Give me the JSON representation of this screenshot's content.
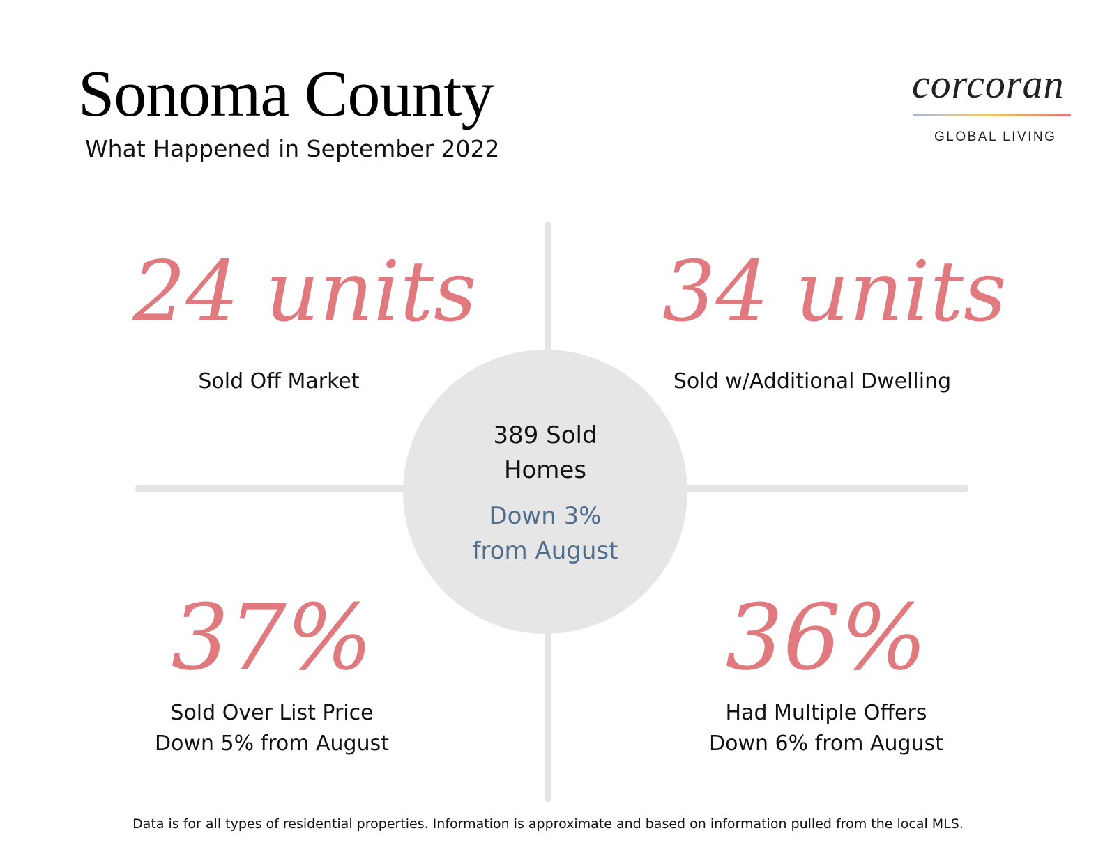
{
  "header": {
    "title": "Sonoma County",
    "subtitle": "What Happened in September 2022"
  },
  "logo": {
    "wordmark": "corcoran",
    "tagline": "GLOBAL LIVING"
  },
  "center": {
    "line1": "389 Sold",
    "line2": "Homes",
    "change_line1": "Down 3%",
    "change_line2": "from August"
  },
  "stats": {
    "top_left": {
      "value": "24 units",
      "label": "Sold Off Market"
    },
    "top_right": {
      "value": "34 units",
      "label": "Sold w/Additional Dwelling"
    },
    "bottom_left": {
      "value": "37%",
      "label_line1": "Sold Over List Price",
      "label_line2": "Down 5% from August"
    },
    "bottom_right": {
      "value": "36%",
      "label_line1": "Had Multiple Offers",
      "label_line2": "Down 6% from August"
    }
  },
  "footnote": "Data is for all types of residential properties. Information is approximate and based on information pulled from the local MLS.",
  "colors": {
    "accent_pink": "#e07a7f",
    "change_blue": "#4f6e8f",
    "circle_gray": "#e6e6e6",
    "divider_gray": "#e4e4e4"
  }
}
